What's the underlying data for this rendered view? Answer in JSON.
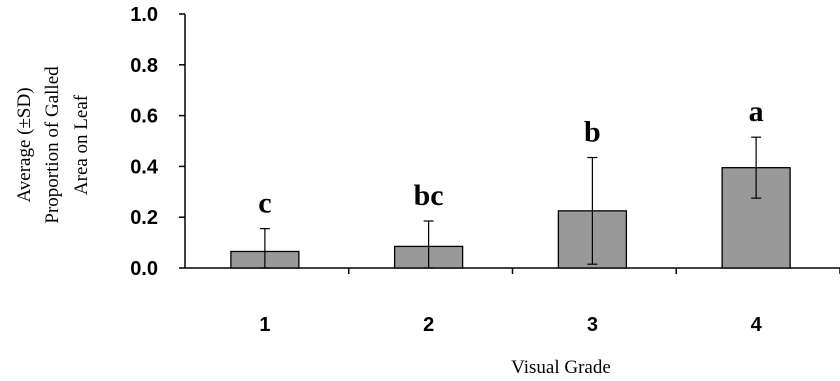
{
  "chart_data": {
    "type": "bar",
    "categories": [
      "1",
      "2",
      "3",
      "4"
    ],
    "values": [
      0.065,
      0.085,
      0.225,
      0.395
    ],
    "error": [
      0.09,
      0.1,
      0.21,
      0.12
    ],
    "significance_letters": [
      "c",
      "bc",
      "b",
      "a"
    ],
    "xlabel": "Visual Grade",
    "ylabel_lines": [
      "Average (±SD)",
      "Proportion of  Galled",
      "Area on Leaf"
    ],
    "ylim": [
      0,
      1.0
    ],
    "yticks": [
      "0.0",
      "0.2",
      "0.4",
      "0.6",
      "0.8",
      "1.0"
    ],
    "bar_color": "#999999",
    "grid": false
  }
}
